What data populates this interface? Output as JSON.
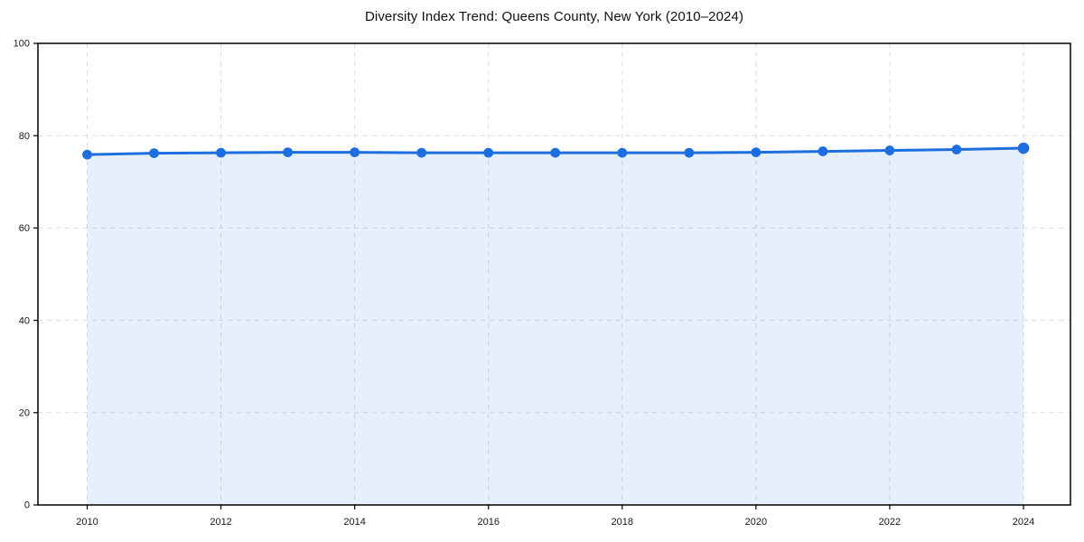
{
  "page": {
    "background": "#ffffff"
  },
  "header": {
    "title": "Diversity Index Trend: Queens County, New York (2010–2024)"
  },
  "chart_data": {
    "type": "line",
    "title": "Diversity Index Trend: Queens County, New York (2010–2024)",
    "x": [
      2010,
      2011,
      2012,
      2013,
      2014,
      2015,
      2016,
      2017,
      2018,
      2019,
      2020,
      2021,
      2022,
      2023,
      2024
    ],
    "series": [
      {
        "name": "Diversity Index",
        "values": [
          75.9,
          76.2,
          76.3,
          76.4,
          76.4,
          76.3,
          76.3,
          76.3,
          76.3,
          76.3,
          76.4,
          76.6,
          76.8,
          77.0,
          77.3
        ]
      }
    ],
    "xlabel": "",
    "ylabel": "",
    "ylim": [
      0,
      100
    ],
    "yticks": [
      0,
      20,
      40,
      60,
      80,
      100
    ],
    "xticks": [
      2010,
      2012,
      2014,
      2016,
      2018,
      2020,
      2022,
      2024
    ],
    "grid": true,
    "grid_style": "dashed",
    "legend": "none",
    "area_fill": true,
    "markers": true,
    "colors": {
      "line": "#1d6fe0",
      "marker": "#1d6fe0",
      "area": "#1d6fe0",
      "grid": "#dcdcdc",
      "spine": "#000000",
      "tick_text": "#1a1a1a",
      "title_text": "#111111",
      "background": "#ffffff"
    }
  }
}
